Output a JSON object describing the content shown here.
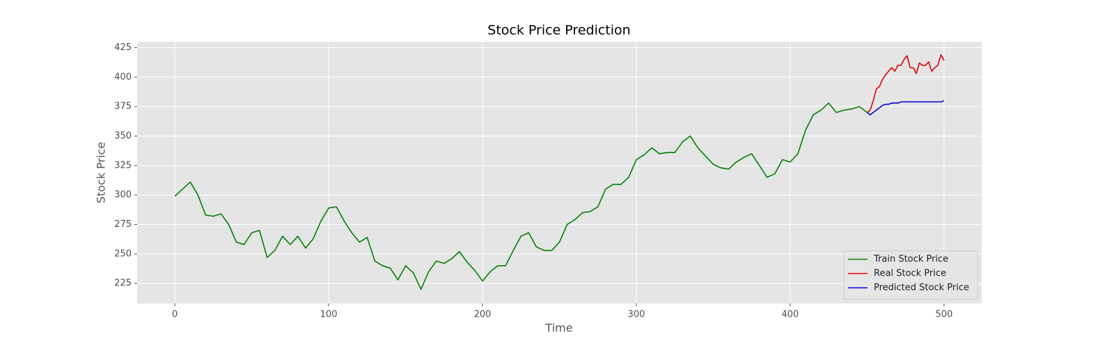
{
  "chart_data": {
    "type": "line",
    "title": "Stock Price Prediction",
    "xlabel": "Time",
    "ylabel": "Stock Price",
    "xlim": [
      -24.5,
      524.5
    ],
    "ylim": [
      208,
      430
    ],
    "xticks": [
      0,
      100,
      200,
      300,
      400,
      500
    ],
    "yticks": [
      225,
      250,
      275,
      300,
      325,
      350,
      375,
      400,
      425
    ],
    "grid": true,
    "legend": "lower right",
    "series": [
      {
        "name": "Train Stock Price",
        "color": "#008000",
        "x": [
          0,
          5,
          10,
          15,
          20,
          25,
          30,
          35,
          40,
          45,
          50,
          55,
          60,
          65,
          70,
          75,
          80,
          85,
          90,
          95,
          100,
          105,
          110,
          115,
          120,
          125,
          130,
          135,
          140,
          145,
          150,
          155,
          160,
          165,
          170,
          175,
          180,
          185,
          190,
          195,
          200,
          205,
          210,
          215,
          220,
          225,
          230,
          235,
          240,
          245,
          250,
          255,
          260,
          265,
          270,
          275,
          280,
          285,
          290,
          295,
          300,
          305,
          310,
          315,
          320,
          325,
          330,
          335,
          340,
          345,
          350,
          355,
          360,
          365,
          370,
          375,
          380,
          385,
          390,
          395,
          400,
          405,
          410,
          415,
          420,
          425,
          430,
          435,
          440,
          445,
          450
        ],
        "values": [
          299,
          305,
          311,
          300,
          283,
          282,
          284,
          275,
          260,
          258,
          268,
          270,
          247,
          253,
          265,
          258,
          265,
          255,
          263,
          278,
          289,
          290,
          278,
          268,
          260,
          264,
          244,
          240,
          238,
          228,
          240,
          234,
          220,
          235,
          244,
          242,
          246,
          252,
          243,
          236,
          227,
          235,
          240,
          240,
          253,
          265,
          268,
          256,
          253,
          253,
          260,
          275,
          279,
          285,
          286,
          290,
          305,
          309,
          309,
          315,
          330,
          334,
          340,
          335,
          336,
          336,
          345,
          350,
          340,
          333,
          326,
          323,
          322,
          328,
          332,
          335,
          325,
          315,
          318,
          330,
          328,
          335,
          355,
          368,
          372,
          378,
          370,
          372,
          373,
          375,
          370
        ]
      },
      {
        "name": "Real Stock Price",
        "color": "#e00000",
        "x": [
          450,
          452,
          454,
          456,
          458,
          460,
          462,
          464,
          466,
          468,
          470,
          472,
          474,
          476,
          478,
          480,
          482,
          484,
          486,
          488,
          490,
          492,
          494,
          496,
          498,
          500
        ],
        "values": [
          370,
          372,
          380,
          390,
          392,
          398,
          402,
          405,
          408,
          405,
          410,
          410,
          415,
          418,
          408,
          408,
          403,
          412,
          410,
          410,
          413,
          405,
          408,
          410,
          419,
          414
        ]
      },
      {
        "name": "Predicted Stock Price",
        "color": "#0000e0",
        "x": [
          450,
          452,
          454,
          456,
          458,
          460,
          462,
          464,
          466,
          468,
          470,
          472,
          474,
          476,
          478,
          480,
          482,
          484,
          486,
          488,
          490,
          492,
          494,
          496,
          498,
          500
        ],
        "values": [
          370,
          368,
          370,
          372,
          374,
          376,
          377,
          377,
          378,
          378,
          378,
          379,
          379,
          379,
          379,
          379,
          379,
          379,
          379,
          379,
          379,
          379,
          379,
          379,
          379,
          380
        ]
      }
    ]
  }
}
